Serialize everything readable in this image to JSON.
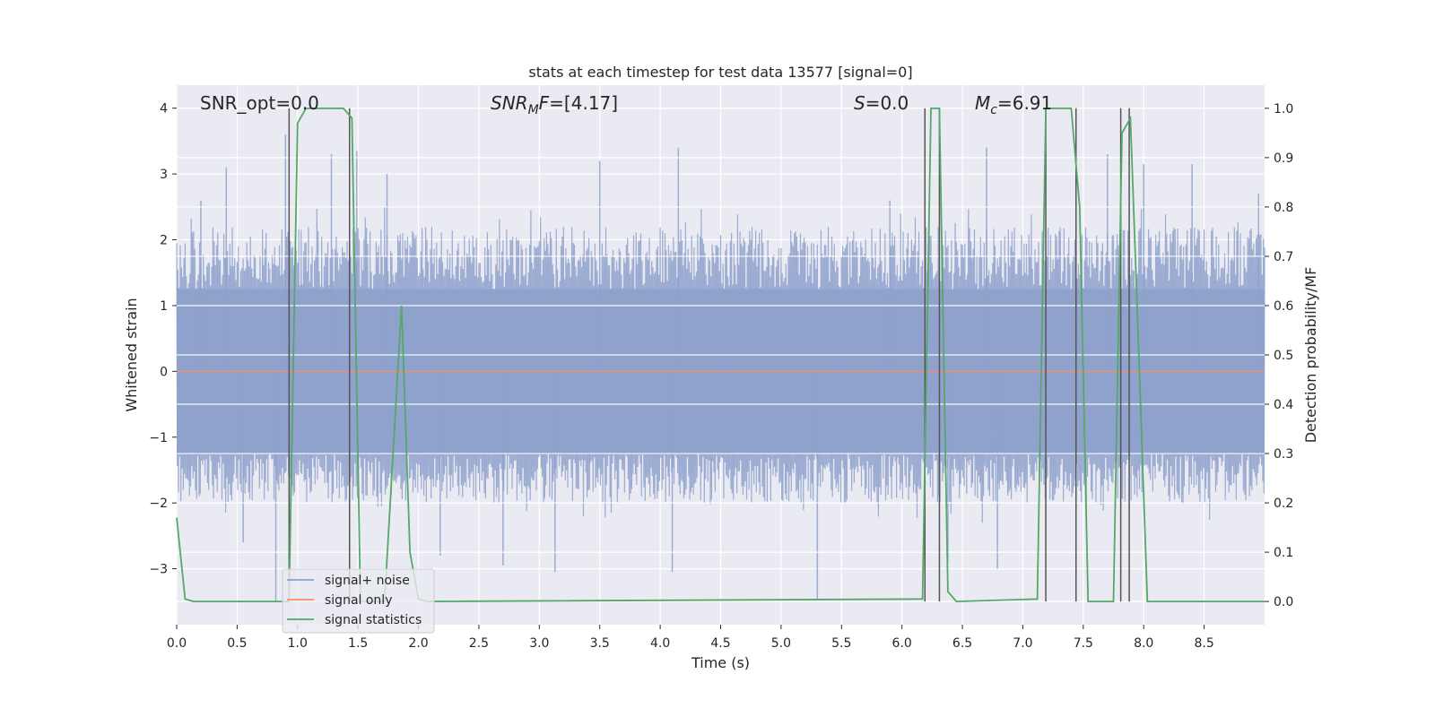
{
  "chart_data": {
    "type": "line",
    "title": "stats at each timestep for test data 13577 [signal=0]",
    "xlabel": "Time (s)",
    "ylabel": "Whitened strain",
    "y2label": "Detection probability/MF",
    "xlim": [
      0.0,
      9.0
    ],
    "ylim": [
      -3.85,
      4.35
    ],
    "y2lim": [
      -0.047,
      1.047
    ],
    "grid": true,
    "legend_position": "lower-left",
    "x_ticks": [
      "0.0",
      "0.5",
      "1.0",
      "1.5",
      "2.0",
      "2.5",
      "3.0",
      "3.5",
      "4.0",
      "4.5",
      "5.0",
      "5.5",
      "6.0",
      "6.5",
      "7.0",
      "7.5",
      "8.0",
      "8.5"
    ],
    "y_ticks": [
      "4",
      "3",
      "2",
      "1",
      "0",
      "−1",
      "−2",
      "−3"
    ],
    "y2_ticks": [
      "1.0",
      "0.9",
      "0.8",
      "0.7",
      "0.6",
      "0.5",
      "0.4",
      "0.3",
      "0.2",
      "0.1",
      "0.0"
    ],
    "annotations": [
      {
        "id": "snr_opt",
        "parts": [
          {
            "t": "SNR_opt=0.0",
            "i": false
          }
        ]
      },
      {
        "id": "snr_mf",
        "parts": [
          {
            "t": "SNR",
            "i": true
          },
          {
            "t": "M",
            "i": true,
            "sub": true
          },
          {
            "t": "F",
            "i": true
          },
          {
            "t": "=[4.17]",
            "i": false
          }
        ]
      },
      {
        "id": "s",
        "parts": [
          {
            "t": "S",
            "i": true
          },
          {
            "t": "=0.0",
            "i": false
          }
        ]
      },
      {
        "id": "mc",
        "parts": [
          {
            "t": "M",
            "i": true
          },
          {
            "t": "c",
            "i": true,
            "sub": true
          },
          {
            "t": "=6.91",
            "i": false
          }
        ]
      }
    ],
    "series": [
      {
        "name": "signal+ noise",
        "color": "#8da0cb",
        "axis": "left",
        "description_values": "noise band mostly within about -1.8 to 2.0, spikes up to about 3.6 and down to about -3.5",
        "band": {
          "core_low": -1.25,
          "core_high": 1.25,
          "env_low": -2.0,
          "env_high": 2.2
        },
        "spikes": [
          {
            "x": 0.2,
            "y": 2.6
          },
          {
            "x": 0.41,
            "y": 3.1
          },
          {
            "x": 0.55,
            "y": -2.6
          },
          {
            "x": 0.82,
            "y": -3.5
          },
          {
            "x": 0.9,
            "y": 3.6
          },
          {
            "x": 1.28,
            "y": 3.3
          },
          {
            "x": 1.49,
            "y": 3.35
          },
          {
            "x": 1.74,
            "y": 3.0
          },
          {
            "x": 2.18,
            "y": -2.8
          },
          {
            "x": 2.7,
            "y": -2.95
          },
          {
            "x": 3.13,
            "y": -3.05
          },
          {
            "x": 3.5,
            "y": 3.2
          },
          {
            "x": 4.15,
            "y": 3.4
          },
          {
            "x": 4.1,
            "y": -3.05
          },
          {
            "x": 5.3,
            "y": -3.45
          },
          {
            "x": 5.9,
            "y": 2.6
          },
          {
            "x": 6.38,
            "y": -2.9
          },
          {
            "x": 6.7,
            "y": 3.4
          },
          {
            "x": 6.79,
            "y": -3.0
          },
          {
            "x": 7.7,
            "y": 3.3
          },
          {
            "x": 8.0,
            "y": 3.15
          },
          {
            "x": 8.4,
            "y": 3.15
          },
          {
            "x": 8.95,
            "y": 2.7
          }
        ]
      },
      {
        "name": "signal only",
        "color": "#fc8d62",
        "axis": "left",
        "x": [
          0.0,
          9.0
        ],
        "y": [
          0.0,
          0.0
        ]
      },
      {
        "name": "signal statistics",
        "color": "#55a868",
        "axis": "right",
        "x": [
          0.0,
          0.07,
          0.14,
          0.93,
          1.0,
          1.07,
          1.14,
          1.38,
          1.45,
          1.52,
          1.72,
          1.86,
          1.93,
          2.0,
          2.07,
          6.17,
          6.24,
          6.31,
          6.38,
          6.45,
          7.12,
          7.19,
          7.26,
          7.33,
          7.4,
          7.47,
          7.54,
          7.75,
          7.82,
          7.89,
          7.96,
          8.03,
          9.0
        ],
        "y": [
          0.17,
          0.005,
          0.0,
          0.0,
          0.97,
          1.0,
          1.0,
          1.0,
          0.98,
          0.0,
          0.0,
          0.6,
          0.1,
          0.005,
          0.0,
          0.005,
          1.0,
          1.0,
          0.02,
          0.0,
          0.005,
          1.0,
          1.0,
          1.0,
          1.0,
          0.8,
          0.0,
          0.0,
          0.95,
          0.98,
          0.5,
          0.0,
          0.0
        ]
      }
    ],
    "vertical_lines": [
      0.93,
      1.43,
      6.19,
      6.31,
      7.19,
      7.44,
      7.81,
      7.88
    ]
  }
}
